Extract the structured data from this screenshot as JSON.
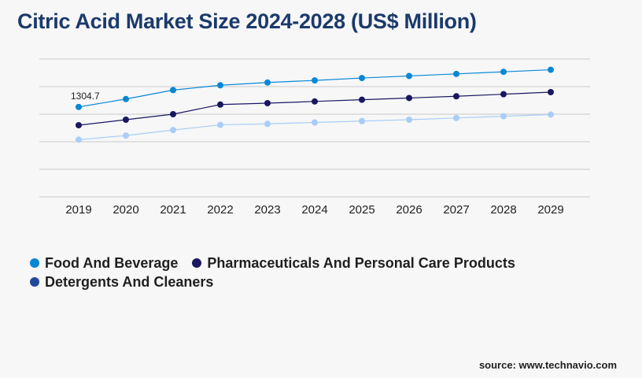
{
  "title": "Citric Acid Market Size 2024-2028 (US$ Million)",
  "source": "source: www.technavio.com",
  "chart_data": {
    "type": "line",
    "x": [
      "2019",
      "2020",
      "2021",
      "2022",
      "2023",
      "2024",
      "2025",
      "2026",
      "2027",
      "2028",
      "2029"
    ],
    "ylim": [
      0,
      2000
    ],
    "grid": true,
    "legend_position": "bottom-left",
    "series": [
      {
        "name": "Food And Beverage",
        "color": "#0a87d4",
        "values": [
          1304.7,
          1420,
          1550,
          1620,
          1660,
          1690,
          1725,
          1755,
          1785,
          1815,
          1845
        ]
      },
      {
        "name": "Pharmaceuticals And Personal Care Products",
        "color": "#1a1760",
        "values": [
          1040,
          1120,
          1200,
          1340,
          1360,
          1385,
          1410,
          1435,
          1460,
          1490,
          1520
        ]
      },
      {
        "name": "Detergents And Cleaners",
        "color": "#a9cdf6",
        "values": [
          830,
          890,
          970,
          1045,
          1060,
          1080,
          1100,
          1120,
          1145,
          1170,
          1195
        ]
      }
    ],
    "annotations": [
      {
        "text": "1304.7",
        "series": 0,
        "index": 0
      }
    ]
  },
  "legend": {
    "dot_colors": [
      "#0a87d4",
      "#1a1760",
      "#1f4a9a"
    ]
  }
}
